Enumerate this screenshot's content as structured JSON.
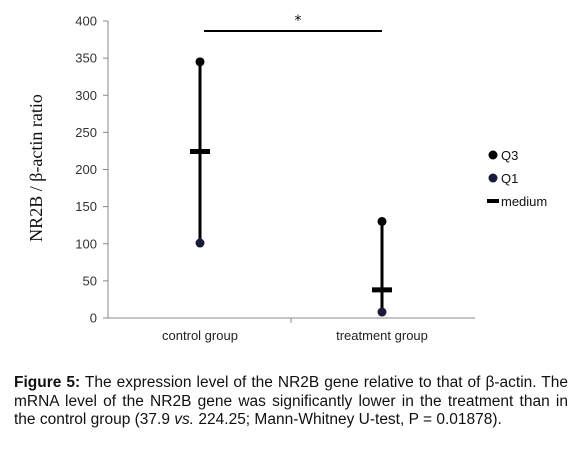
{
  "chart_data": {
    "type": "scatter",
    "ylabel": "NR2B / β-actin ratio",
    "ylim": [
      0,
      400
    ],
    "yticks": [
      "0",
      "50",
      "100",
      "150",
      "200",
      "250",
      "300",
      "350",
      "400"
    ],
    "categories": [
      "control group",
      "treatment group"
    ],
    "series": [
      {
        "name": "Q3",
        "values": [
          345,
          130
        ]
      },
      {
        "name": "Q1",
        "values": [
          101,
          8
        ]
      },
      {
        "name": "medium",
        "values": [
          224.25,
          37.9
        ]
      }
    ],
    "significance": {
      "label": "*",
      "between": [
        "control group",
        "treatment group"
      ]
    },
    "legend_position": "right",
    "grid": false
  },
  "caption": {
    "label": "Figure 5:",
    "text_parts": [
      " The expression level of the NR2B gene relative to that of β-actin. The mRNA level of the NR2B gene was significantly lower in the treatment than in the control group (37.9 ",
      "vs.",
      " 224.25; Mann-Whitney U-test, P = 0.01878)."
    ]
  },
  "colors": {
    "q3": "#000000",
    "q1": "#1a1a3a",
    "line": "#000000"
  }
}
